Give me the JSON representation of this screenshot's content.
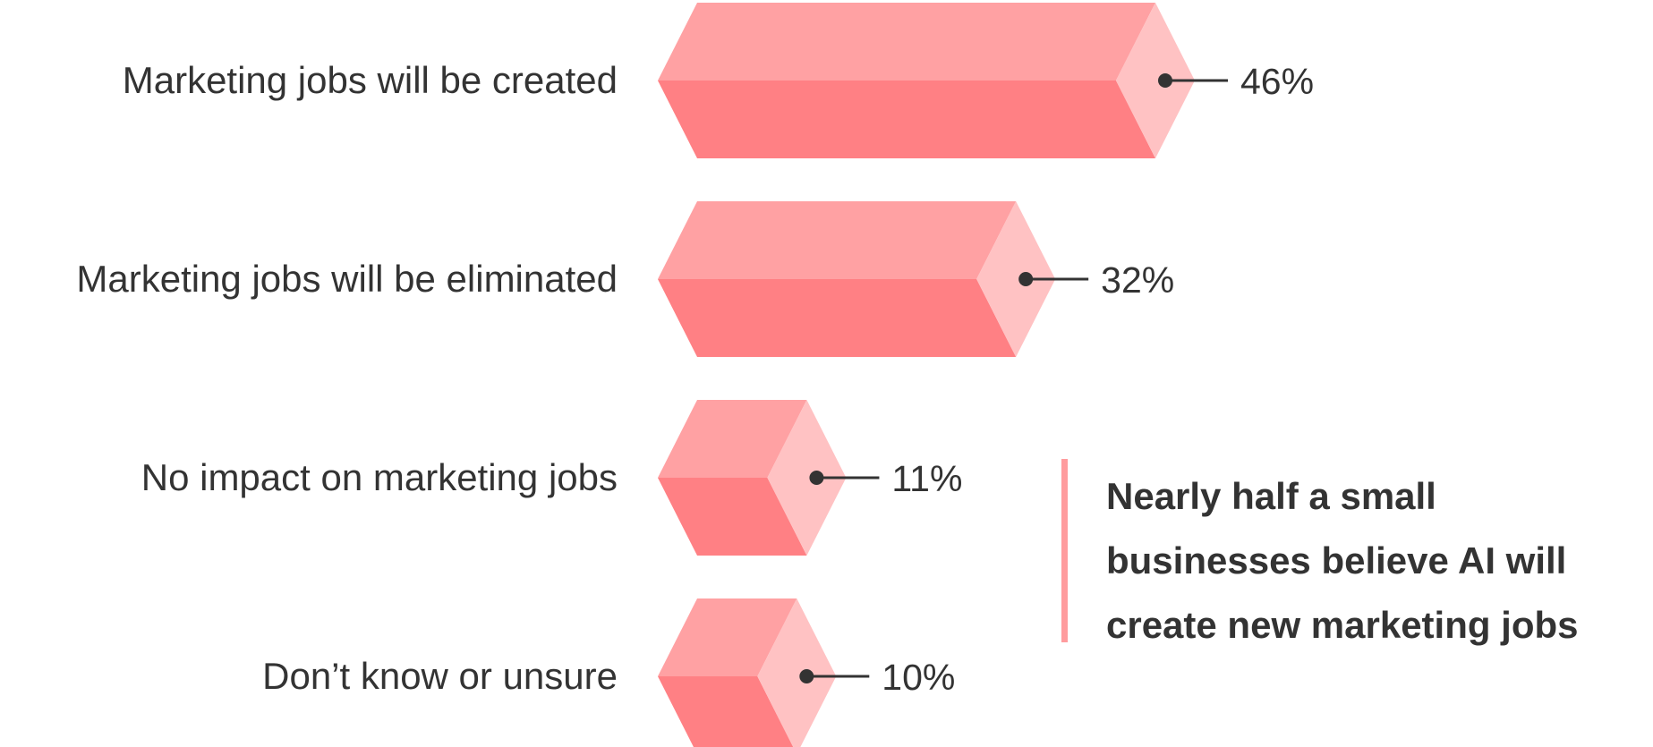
{
  "chart_data": {
    "type": "bar",
    "orientation": "horizontal",
    "categories": [
      "Marketing jobs will be created",
      "Marketing jobs will be eliminated",
      "No impact on marketing jobs",
      "Don’t know or unsure"
    ],
    "values": [
      46,
      32,
      11,
      10
    ],
    "value_labels": [
      "46%",
      "32%",
      "11%",
      "10%"
    ],
    "unit": "%",
    "bar_style": "3d-hexagonal-prism",
    "grid": false,
    "legend": "none"
  },
  "callout": {
    "lines": [
      "Nearly half a small",
      "businesses believe AI will",
      "create new marketing jobs"
    ]
  },
  "colors": {
    "bar_top_face": "#ffa1a3",
    "bar_bottom_face": "#ff8084",
    "bar_end_cap": "#ffc2c3",
    "callout_accent": "#ff9c9e",
    "text": "#333333",
    "leader_line": "#333333"
  }
}
